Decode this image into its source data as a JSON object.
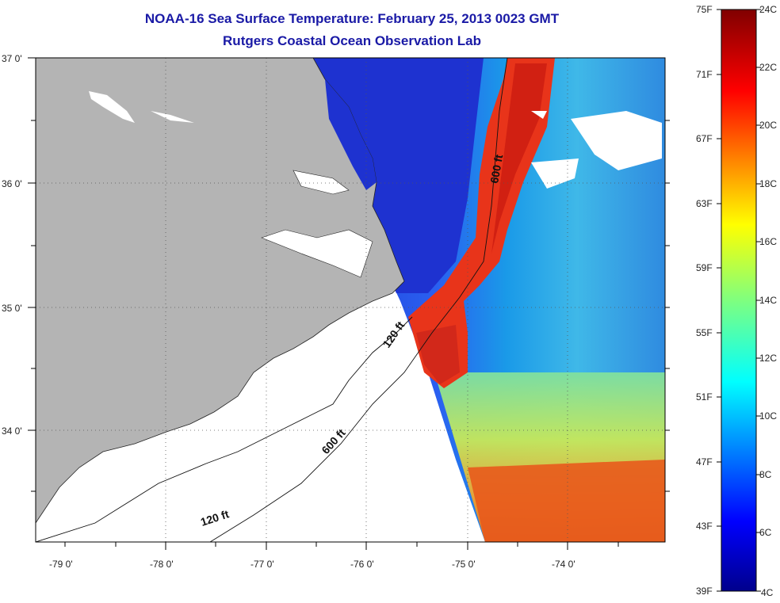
{
  "header": {
    "title": "NOAA-16 Sea Surface Temperature:  February 25, 2013 0023 GMT",
    "subtitle": "Rutgers Coastal Ocean Observation Lab"
  },
  "map": {
    "lat_labels": [
      "37 0'",
      "36 0'",
      "35 0'",
      "34 0'"
    ],
    "lon_labels": [
      "-79 0'",
      "-78 0'",
      "-77 0'",
      "-76 0'",
      "-75 0'",
      "-74 0'"
    ],
    "contour_labels": {
      "shelf_north": "600 ft",
      "mid_120": "120 ft",
      "mid_600": "600 ft",
      "south_120": "120 ft"
    },
    "colors": {
      "land": "#b4b4b4",
      "nodata": "#ffffff",
      "cold": "#1f3fd8",
      "warm": "#e8301c"
    }
  },
  "colorbar": {
    "fahrenheit": [
      "75F",
      "71F",
      "67F",
      "63F",
      "59F",
      "55F",
      "51F",
      "47F",
      "43F",
      "39F"
    ],
    "celsius": [
      "24C",
      "22C",
      "20C",
      "18C",
      "16C",
      "14C",
      "12C",
      "10C",
      "8C",
      "6C",
      "4C"
    ]
  }
}
